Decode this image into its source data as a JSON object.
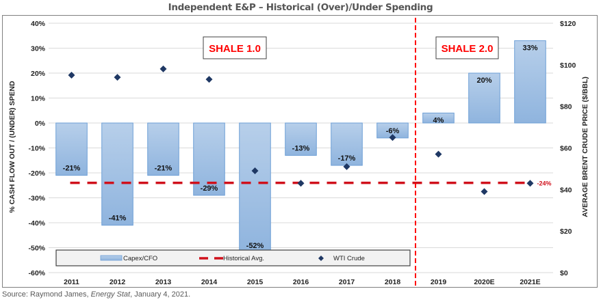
{
  "title": "Independent E&P – Historical (Over)/Under Spending",
  "source": {
    "prefix": "Source: Raymond James, ",
    "publication": "Energy Stat",
    "suffix": ", January 4, 2021."
  },
  "colors": {
    "bar_fill_top": "#b7cfea",
    "bar_fill_bottom": "#8fb4de",
    "bar_stroke": "#6d9fd6",
    "avg_line": "#d0101b",
    "divider_line": "#ff0000",
    "wti_marker": "#1f3864",
    "grid": "#d9d9d9",
    "annotation_text": "#ff0000"
  },
  "annotations": [
    {
      "label": "SHALE 1.0",
      "era": "2011-2018"
    },
    {
      "label": "SHALE 2.0",
      "era": "2019-2021E"
    }
  ],
  "chart_data": {
    "type": "bar",
    "title": "Independent E&P – Historical (Over)/Under Spending",
    "categories": [
      "2011",
      "2012",
      "2013",
      "2014",
      "2015",
      "2016",
      "2017",
      "2018",
      "2019",
      "2020E",
      "2021E"
    ],
    "series": [
      {
        "name": "Capex/CFO",
        "type": "bar",
        "axis": "left",
        "values": [
          -21,
          -41,
          -21,
          -29,
          -52,
          -13,
          -17,
          -6,
          4,
          20,
          33
        ],
        "labels": [
          "-21%",
          "-41%",
          "-21%",
          "-29%",
          "-52%",
          "-13%",
          "-17%",
          "-6%",
          "4%",
          "20%",
          "33%"
        ]
      },
      {
        "name": "Historical Avg.",
        "type": "line",
        "style": "dashed",
        "axis": "left",
        "value": -24,
        "label": "-24%"
      },
      {
        "name": "WTI Crude",
        "type": "scatter",
        "marker": "diamond",
        "axis": "right",
        "values": [
          95,
          94,
          98,
          93,
          49,
          43,
          51,
          65,
          57,
          39,
          43
        ]
      }
    ],
    "ylabel": "% CASH FLOW OUT / (UNDER) SPEND",
    "y2label": "AVERAGE BRENT CRUDE PRICE ($/BBL)",
    "ylim": [
      -60,
      40
    ],
    "y2lim": [
      0,
      120
    ],
    "yticks": [
      "40%",
      "30%",
      "20%",
      "10%",
      "0%",
      "-10%",
      "-20%",
      "-30%",
      "-40%",
      "-50%",
      "-60%"
    ],
    "ytick_values": [
      40,
      30,
      20,
      10,
      0,
      -10,
      -20,
      -30,
      -40,
      -50,
      -60
    ],
    "y2ticks": [
      "$120",
      "$100",
      "$80",
      "$60",
      "$40",
      "$20",
      "$0"
    ],
    "y2tick_values": [
      120,
      100,
      80,
      60,
      40,
      20,
      0
    ],
    "divider_between": [
      "2018",
      "2019"
    ],
    "grid": true,
    "legend": {
      "placement": "bottom-left-inside",
      "entries": [
        "Capex/CFO",
        "Historical Avg.",
        "WTI Crude"
      ]
    }
  }
}
